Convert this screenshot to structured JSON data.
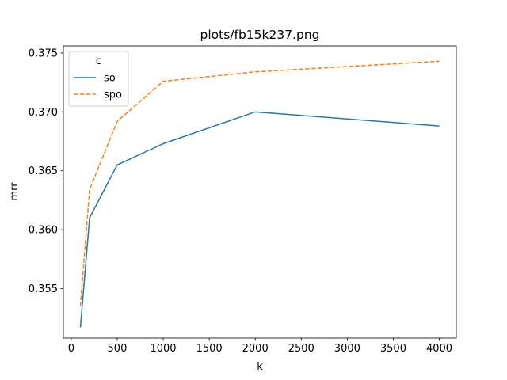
{
  "chart_data": {
    "type": "line",
    "title": "plots/fb15k237.png",
    "xlabel": "k",
    "ylabel": "mrr",
    "x": [
      100,
      200,
      500,
      1000,
      2000,
      4000
    ],
    "xlim": [
      -85,
      4185
    ],
    "ylim": [
      0.3508,
      0.3756
    ],
    "xticks": [
      0,
      500,
      1000,
      1500,
      2000,
      2500,
      3000,
      3500,
      4000
    ],
    "xtick_labels": [
      "0",
      "500",
      "1000",
      "1500",
      "2000",
      "2500",
      "3000",
      "3500",
      "4000"
    ],
    "yticks": [
      0.355,
      0.36,
      0.365,
      0.37,
      0.375
    ],
    "ytick_labels": [
      "0.355",
      "0.360",
      "0.365",
      "0.370",
      "0.375"
    ],
    "grid": false,
    "legend": {
      "title": "c",
      "placement": "top-left"
    },
    "series": [
      {
        "name": "so",
        "color": "#1f77b4",
        "dash": "solid",
        "values": [
          0.3517,
          0.361,
          0.3655,
          0.3673,
          0.37,
          0.3688
        ]
      },
      {
        "name": "spo",
        "color": "#ff7f0e",
        "dash": "dashed",
        "values": [
          0.3535,
          0.3634,
          0.3692,
          0.3726,
          0.3734,
          0.3743
        ]
      }
    ]
  }
}
